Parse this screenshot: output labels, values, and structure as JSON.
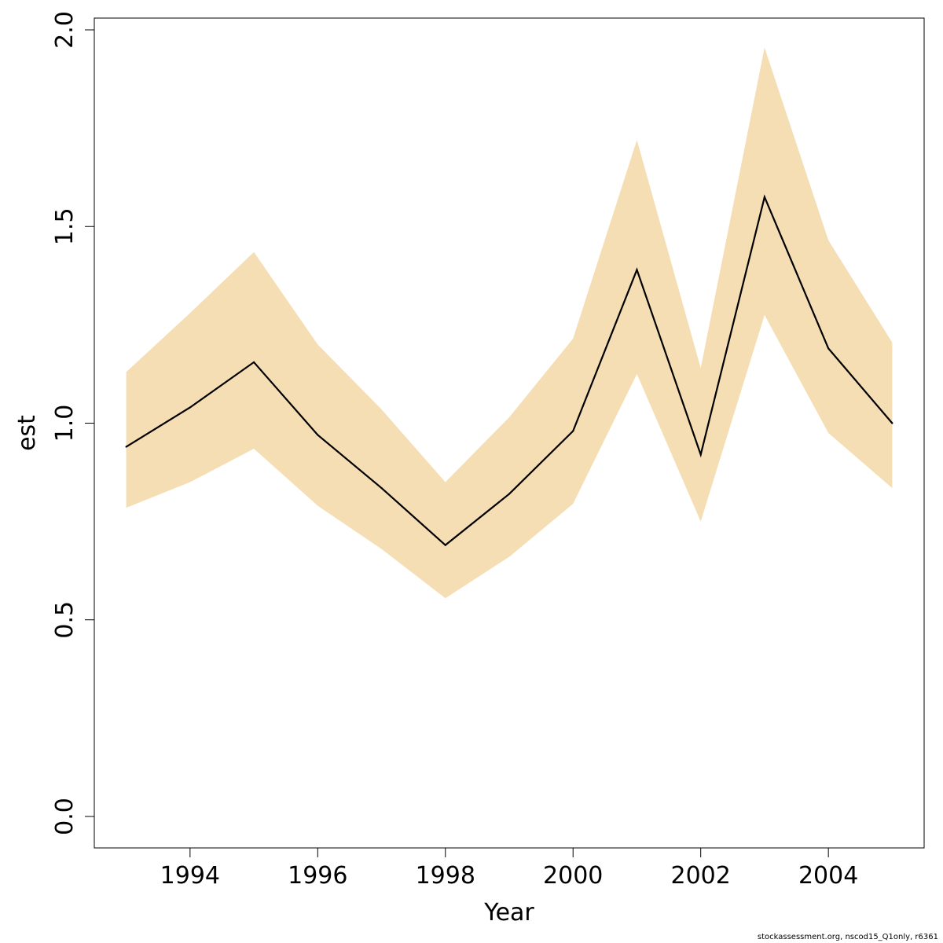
{
  "chart_data": {
    "type": "line",
    "title": "",
    "xlabel": "Year",
    "ylabel": "est",
    "xlim": [
      1992.5,
      2005.5
    ],
    "ylim": [
      -0.08,
      2.03
    ],
    "x_ticks": [
      1994,
      1996,
      1998,
      2000,
      2002,
      2004
    ],
    "x_tick_labels": [
      "1994",
      "1996",
      "1998",
      "2000",
      "2002",
      "2004"
    ],
    "y_ticks": [
      0.0,
      0.5,
      1.0,
      1.5,
      2.0
    ],
    "y_tick_labels": [
      "0.0",
      "0.5",
      "1.0",
      "1.5",
      "2.0"
    ],
    "grid": false,
    "x": [
      1993,
      1994,
      1995,
      1996,
      1997,
      1998,
      1999,
      2000,
      2001,
      2002,
      2003,
      2004,
      2005
    ],
    "series": [
      {
        "values": [
          0.94,
          1.04,
          1.155,
          0.97,
          0.835,
          0.69,
          0.82,
          0.98,
          1.39,
          0.92,
          1.575,
          1.19,
          1.0
        ],
        "color": "#000000"
      }
    ],
    "band": {
      "lower": [
        0.785,
        0.85,
        0.935,
        0.79,
        0.68,
        0.555,
        0.66,
        0.795,
        1.125,
        0.75,
        1.275,
        0.975,
        0.835
      ],
      "upper": [
        1.13,
        1.28,
        1.435,
        1.2,
        1.035,
        0.85,
        1.015,
        1.215,
        1.72,
        1.14,
        1.955,
        1.465,
        1.205
      ],
      "color": "#F5DEB3"
    }
  },
  "footnote": "stockassessment.org, nscod15_Q1only, r6361"
}
